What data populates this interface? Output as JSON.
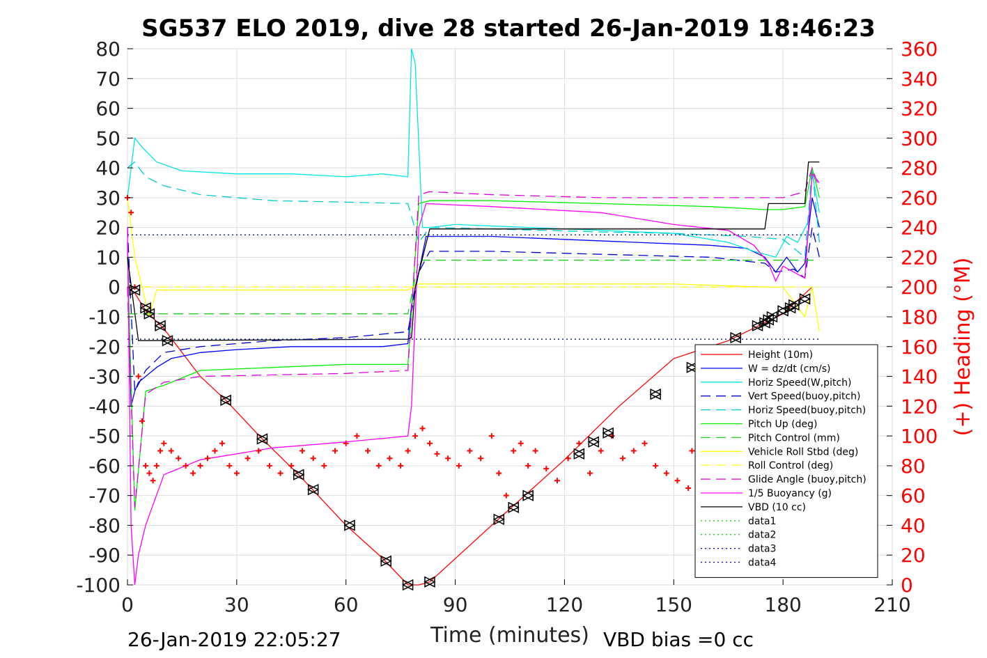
{
  "chart_data": {
    "type": "line",
    "title": "SG537 ELO 2019, dive 28 started 26-Jan-2019 18:46:23",
    "xlabel": "Time (minutes)",
    "ylabel": "",
    "ylabel_right": "(+) Heading (°M)",
    "xlim": [
      0,
      210
    ],
    "ylim": [
      -100,
      80
    ],
    "ylim_right": [
      0,
      360
    ],
    "x_ticks": [
      "0",
      "30",
      "60",
      "90",
      "120",
      "150",
      "180",
      "210"
    ],
    "y_ticks": [
      "80",
      "70",
      "60",
      "50",
      "40",
      "30",
      "20",
      "10",
      "0",
      "-10",
      "-20",
      "-30",
      "-40",
      "-50",
      "-60",
      "-70",
      "-80",
      "-90",
      "-100"
    ],
    "y_ticks_right": [
      "360",
      "340",
      "320",
      "300",
      "280",
      "260",
      "240",
      "220",
      "200",
      "180",
      "160",
      "140",
      "120",
      "100",
      "80",
      "60",
      "40",
      "20",
      "0"
    ],
    "grid": true,
    "legend_position": "bottom-right",
    "footer_left": "26-Jan-2019 22:05:27",
    "footer_right": "VBD bias =0 cc",
    "series": [
      {
        "name": "Height (10m)",
        "color": "#ff0000",
        "style": "solid",
        "x": [
          0,
          2,
          5,
          10,
          20,
          27,
          37,
          47,
          60,
          70,
          77,
          80,
          83,
          100,
          120,
          135,
          150,
          165,
          180,
          188
        ],
        "y": [
          0,
          -2,
          -8,
          -14,
          -30,
          -38,
          -51,
          -63,
          -80,
          -91,
          -100,
          -100,
          -99,
          -80,
          -58,
          -40,
          -24,
          -18,
          -9,
          0
        ]
      },
      {
        "name": "W = dz/dt (cm/s)",
        "color": "#0000ff",
        "style": "solid",
        "x": [
          0,
          1,
          2,
          3,
          5,
          8,
          12,
          20,
          30,
          45,
          60,
          70,
          77,
          78,
          80,
          82,
          90,
          100,
          120,
          140,
          160,
          170,
          175,
          178,
          181,
          184,
          186,
          188,
          190
        ],
        "y": [
          15,
          -40,
          -35,
          -32,
          -30,
          -27,
          -24,
          -22,
          -21,
          -20,
          -20,
          -20,
          -19,
          -6,
          5,
          17,
          17,
          17,
          16,
          15,
          14,
          13,
          10,
          5,
          10,
          5,
          8,
          30,
          20
        ]
      },
      {
        "name": "Horiz Speed(W,pitch)",
        "color": "#00e6e6",
        "style": "solid",
        "x": [
          0,
          2,
          4,
          8,
          15,
          30,
          45,
          60,
          70,
          77,
          78,
          79,
          81,
          83,
          90,
          110,
          130,
          150,
          165,
          172,
          178,
          181,
          184,
          187,
          188,
          190
        ],
        "y": [
          30,
          50,
          47,
          42,
          39,
          38,
          38,
          37,
          38,
          37,
          80,
          75,
          20,
          20,
          21,
          20,
          19,
          18,
          15,
          12,
          10,
          17,
          15,
          22,
          38,
          25
        ]
      },
      {
        "name": "Vert Speed(buoy,pitch)",
        "color": "#0000cc",
        "style": "dash",
        "x": [
          0,
          2,
          5,
          10,
          20,
          40,
          60,
          77,
          80,
          83,
          100,
          130,
          160,
          175,
          178,
          183,
          186,
          188,
          190
        ],
        "y": [
          20,
          -35,
          -28,
          -22,
          -20,
          -18,
          -17,
          -15,
          5,
          12,
          12,
          11,
          10,
          8,
          5,
          6,
          3,
          20,
          10
        ]
      },
      {
        "name": "Horiz Speed(buoy,pitch)",
        "color": "#00cccc",
        "style": "dash",
        "x": [
          0,
          2,
          5,
          10,
          20,
          40,
          60,
          77,
          80,
          83,
          100,
          130,
          150,
          170,
          180,
          186,
          188,
          190
        ],
        "y": [
          40,
          42,
          37,
          34,
          31,
          29,
          28.5,
          28,
          15,
          20,
          19.5,
          18.5,
          18,
          17,
          16,
          10,
          40,
          15
        ]
      },
      {
        "name": "Pitch Up (deg)",
        "color": "#00ee00",
        "style": "solid",
        "x": [
          0,
          2,
          5,
          10,
          20,
          40,
          60,
          77,
          80,
          83,
          100,
          130,
          160,
          175,
          180,
          186,
          188,
          190
        ],
        "y": [
          10,
          -75,
          -35,
          -33,
          -28,
          -27,
          -26,
          -26,
          28,
          29,
          29,
          28,
          27,
          26,
          26,
          27,
          40,
          30
        ]
      },
      {
        "name": "Pitch Control (mm)",
        "color": "#22cc22",
        "style": "dash",
        "x": [
          0,
          5,
          10,
          77,
          80,
          190
        ],
        "y": [
          -9,
          -9,
          -9,
          -9,
          9,
          9
        ]
      },
      {
        "name": "Vehicle Roll Stbd (deg)",
        "color": "#ffff00",
        "style": "solid",
        "x": [
          0,
          2,
          4,
          6,
          8,
          10,
          20,
          30,
          40,
          60,
          77,
          80,
          90,
          120,
          150,
          175,
          180,
          186,
          188,
          190
        ],
        "y": [
          30,
          10,
          0,
          -10,
          -1,
          -1,
          -1,
          -1,
          -1,
          -1,
          -1,
          1,
          1,
          1,
          1,
          0,
          0,
          -10,
          0,
          -15
        ]
      },
      {
        "name": "Roll Control (deg)",
        "color": "#ffff33",
        "style": "dash",
        "x": [
          0,
          190
        ],
        "y": [
          0,
          0
        ]
      },
      {
        "name": "Glide Angle (buoy,pitch)",
        "color": "#dd00dd",
        "style": "dash",
        "x": [
          0,
          2,
          5,
          10,
          20,
          40,
          60,
          77,
          80,
          83,
          100,
          130,
          160,
          180,
          186,
          188,
          190
        ],
        "y": [
          0,
          -74,
          -36,
          -32,
          -30,
          -29.5,
          -29,
          -28,
          31,
          32,
          31,
          30,
          30,
          30,
          32,
          40,
          33
        ]
      },
      {
        "name": "1/5 Buoyancy (g)",
        "color": "#ff00ff",
        "style": "solid",
        "x": [
          0,
          1,
          2,
          3,
          5,
          10,
          20,
          40,
          60,
          77,
          78,
          79,
          80,
          82,
          100,
          130,
          150,
          165,
          172,
          176,
          178,
          180,
          186,
          188,
          190
        ],
        "y": [
          20,
          -80,
          -100,
          -90,
          -80,
          -63,
          -58,
          -54,
          -52,
          -50,
          -40,
          -10,
          20,
          28,
          27,
          25,
          21,
          19,
          14,
          8,
          2,
          7,
          3,
          38,
          35
        ]
      },
      {
        "name": "VBD (10 cc)",
        "color": "#000000",
        "style": "solid",
        "x": [
          0,
          3,
          4,
          77,
          78,
          79,
          83,
          140,
          175,
          176,
          186,
          187,
          190
        ],
        "y": [
          10,
          -18,
          -18,
          -17.5,
          -17,
          0,
          19.5,
          19.5,
          19.5,
          28,
          28,
          42,
          42
        ]
      },
      {
        "name": "data1",
        "color": "#22cc22",
        "style": "dot",
        "x": [
          0,
          190
        ],
        "y": [
          17.5,
          17.5
        ]
      },
      {
        "name": "data2",
        "color": "#22cc22",
        "style": "dot",
        "x": [
          0,
          190
        ],
        "y": [
          -17.5,
          -17.5
        ]
      },
      {
        "name": "data3",
        "color": "#0000aa",
        "style": "dot",
        "x": [
          0,
          190
        ],
        "y": [
          17.5,
          17.5
        ]
      },
      {
        "name": "data4",
        "color": "#0000aa",
        "style": "dot",
        "x": [
          0,
          190
        ],
        "y": [
          -17.5,
          -17.5
        ]
      }
    ],
    "heading": {
      "name": "Heading",
      "axis": "right",
      "color": "#ff0000",
      "marker": "+",
      "x": [
        0,
        1,
        2,
        3,
        4,
        5,
        6,
        7,
        8,
        9,
        10,
        12,
        14,
        16,
        18,
        20,
        22,
        24,
        26,
        28,
        30,
        33,
        36,
        39,
        42,
        45,
        48,
        51,
        54,
        57,
        60,
        63,
        66,
        69,
        72,
        75,
        77,
        79,
        81,
        83,
        85,
        88,
        91,
        94,
        97,
        100,
        102,
        104,
        106,
        108,
        110,
        112,
        115,
        118,
        121,
        124,
        127,
        130,
        133,
        136,
        139,
        142,
        145,
        148,
        151,
        154,
        155
      ],
      "y": [
        260,
        250,
        200,
        140,
        110,
        80,
        75,
        70,
        80,
        90,
        95,
        90,
        85,
        80,
        75,
        80,
        85,
        90,
        95,
        80,
        75,
        85,
        90,
        80,
        75,
        80,
        90,
        85,
        80,
        90,
        95,
        100,
        90,
        80,
        85,
        80,
        90,
        100,
        105,
        95,
        88,
        85,
        80,
        90,
        85,
        100,
        75,
        60,
        90,
        95,
        80,
        90,
        78,
        70,
        85,
        95,
        75,
        90,
        100,
        85,
        90,
        95,
        80,
        75,
        70,
        65,
        90
      ]
    },
    "height_markers": {
      "x": [
        2,
        5,
        6,
        9,
        11,
        27,
        37,
        47,
        51,
        61,
        71,
        77,
        83,
        102,
        106,
        110,
        124,
        128,
        132,
        145,
        155,
        167,
        173,
        175,
        176,
        177,
        180,
        182,
        183,
        186
      ],
      "y": [
        -1,
        -7,
        -9,
        -13,
        -18,
        -38,
        -51,
        -63,
        -68,
        -80,
        -92,
        -100,
        -99,
        -78,
        -74,
        -70,
        -56,
        -52,
        -49,
        -36,
        -27,
        -17,
        -13,
        -12,
        -11,
        -10,
        -8,
        -7,
        -6,
        -4
      ]
    }
  }
}
